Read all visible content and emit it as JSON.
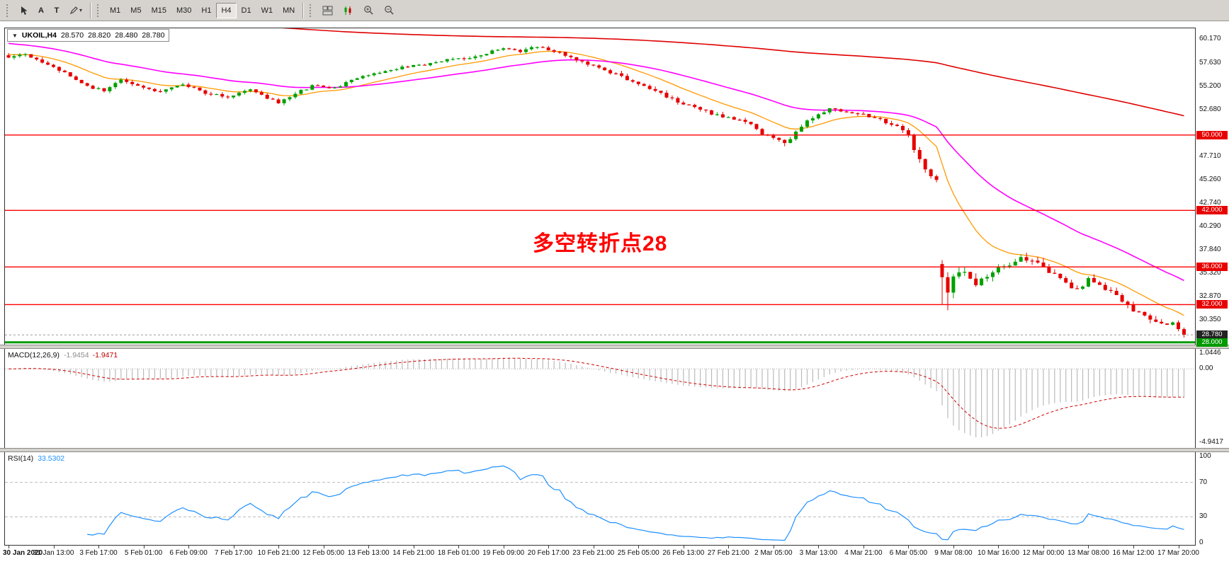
{
  "toolbar": {
    "buttons": {
      "arrow_label": "A",
      "text_label": "T"
    },
    "timeframes": {
      "items": [
        "M1",
        "M5",
        "M15",
        "M30",
        "H1",
        "H4",
        "D1",
        "W1",
        "MN"
      ],
      "active": "H4"
    },
    "right_icons": [
      "tile-windows",
      "candlestick-chart",
      "zoom-in",
      "zoom-out"
    ]
  },
  "chart": {
    "info": {
      "symbol_tf": "UKOIL,H4",
      "open": "28.570",
      "high": "28.820",
      "low": "28.480",
      "close": "28.780"
    },
    "annotation": {
      "text": "多空转折点28",
      "color": "#FF0000"
    },
    "axis": {
      "ticks": [
        [
          "60.170",
          60.17
        ],
        [
          "57.630",
          57.63
        ],
        [
          "55.200",
          55.2
        ],
        [
          "52.680",
          52.68
        ],
        [
          "47.710",
          47.71
        ],
        [
          "45.260",
          45.26
        ],
        [
          "42.740",
          42.74
        ],
        [
          "40.290",
          40.29
        ],
        [
          "37.840",
          37.84
        ],
        [
          "35.320",
          35.32
        ],
        [
          "32.870",
          32.87
        ],
        [
          "30.350",
          30.35
        ]
      ],
      "badges": [
        [
          "50.000",
          50,
          "#E80000"
        ],
        [
          "42.000",
          42,
          "#E80000"
        ],
        [
          "36.000",
          36,
          "#E80000"
        ],
        [
          "32.000",
          32,
          "#E80000"
        ],
        [
          "28.780",
          28.78,
          "#222222"
        ],
        [
          "28.000",
          28,
          "#009900"
        ]
      ]
    },
    "macd": {
      "label": "MACD(12,26,9)",
      "value_main": "-1.9454",
      "value_signal": "-1.9471",
      "axis": [
        [
          "1.0446",
          1.0446
        ],
        [
          "0.00",
          0
        ],
        [
          "-4.9417",
          -4.9417
        ]
      ]
    },
    "rsi": {
      "label": "RSI(14)",
      "value": "33.5302",
      "axis": [
        [
          "100",
          100
        ],
        [
          "70",
          70
        ],
        [
          "30",
          30
        ],
        [
          "0",
          0
        ]
      ],
      "levels": [
        70,
        30
      ]
    }
  },
  "chart_data": {
    "type": "candlestick",
    "symbol": "UKOIL",
    "timeframe": "H4",
    "bars": 210,
    "last_close": 28.78,
    "current_price": 28.78,
    "colors": {
      "up": "#00A000",
      "down": "#E60000",
      "macd_hist": "#BBBBBB",
      "macd_signal": "#D00000",
      "rsi": "#1E90FF"
    },
    "price_anchors": [
      [
        0,
        58.1,
        0.5
      ],
      [
        3,
        58.6,
        0.5
      ],
      [
        6,
        57.8,
        0.5
      ],
      [
        10,
        56.6,
        0.5
      ],
      [
        14,
        55.2,
        0.5
      ],
      [
        17,
        54.7,
        0.5
      ],
      [
        20,
        55.8,
        0.5
      ],
      [
        24,
        55.1,
        0.45
      ],
      [
        27,
        54.6,
        0.45
      ],
      [
        31,
        55.4,
        0.45
      ],
      [
        35,
        54.5,
        0.45
      ],
      [
        39,
        54.1,
        0.45
      ],
      [
        43,
        54.9,
        0.45
      ],
      [
        46,
        53.9,
        0.45
      ],
      [
        48,
        53.4,
        0.45
      ],
      [
        51,
        54.4,
        0.45
      ],
      [
        54,
        55.2,
        0.45
      ],
      [
        58,
        55.0,
        0.4
      ],
      [
        62,
        56.1,
        0.4
      ],
      [
        66,
        56.7,
        0.4
      ],
      [
        70,
        57.2,
        0.4
      ],
      [
        74,
        57.5,
        0.4
      ],
      [
        78,
        58.0,
        0.4
      ],
      [
        82,
        58.2,
        0.4
      ],
      [
        85,
        58.7,
        0.45
      ],
      [
        88,
        59.2,
        0.45
      ],
      [
        91,
        58.9,
        0.45
      ],
      [
        93,
        59.4,
        0.45
      ],
      [
        96,
        59.1,
        0.45
      ],
      [
        99,
        58.5,
        0.5
      ],
      [
        102,
        57.8,
        0.5
      ],
      [
        105,
        57.1,
        0.5
      ],
      [
        108,
        56.4,
        0.55
      ],
      [
        111,
        55.7,
        0.55
      ],
      [
        114,
        54.9,
        0.55
      ],
      [
        117,
        54.1,
        0.55
      ],
      [
        120,
        53.3,
        0.55
      ],
      [
        123,
        52.7,
        0.55
      ],
      [
        126,
        52.1,
        0.55
      ],
      [
        129,
        51.7,
        0.5
      ],
      [
        132,
        51.1,
        0.5
      ],
      [
        134,
        50.2,
        0.55
      ],
      [
        136,
        49.6,
        0.55
      ],
      [
        138,
        49.1,
        0.55
      ],
      [
        140,
        50.3,
        0.6
      ],
      [
        142,
        51.4,
        0.6
      ],
      [
        144,
        52.2,
        0.6
      ],
      [
        146,
        52.9,
        0.55
      ],
      [
        149,
        52.4,
        0.5
      ],
      [
        152,
        52.1,
        0.5
      ],
      [
        155,
        51.6,
        0.5
      ],
      [
        158,
        50.9,
        0.55
      ],
      [
        160,
        49.9,
        0.7
      ],
      [
        161,
        48.6,
        0.8
      ],
      [
        162,
        47.4,
        0.8
      ],
      [
        163,
        46.3,
        0.8
      ],
      [
        164,
        45.6,
        0.7
      ],
      [
        165,
        45.1,
        0.6
      ],
      [
        166,
        34.8,
        1.3
      ],
      [
        167,
        33.6,
        1.4
      ],
      [
        168,
        34.8,
        1.3
      ],
      [
        170,
        35.6,
        1.2
      ],
      [
        172,
        34.2,
        1.2
      ],
      [
        174,
        35.2,
        1.2
      ],
      [
        176,
        36.1,
        1.1
      ],
      [
        178,
        36.4,
        1.0
      ],
      [
        180,
        37.2,
        1.0
      ],
      [
        182,
        36.6,
        1.0
      ],
      [
        184,
        35.9,
        1.0
      ],
      [
        186,
        35.1,
        1.0
      ],
      [
        188,
        34.2,
        1.0
      ],
      [
        190,
        33.6,
        0.9
      ],
      [
        192,
        34.6,
        0.9
      ],
      [
        194,
        34.1,
        0.9
      ],
      [
        196,
        33.4,
        0.9
      ],
      [
        198,
        32.3,
        0.9
      ],
      [
        200,
        31.4,
        0.8
      ],
      [
        202,
        30.9,
        0.8
      ],
      [
        204,
        30.3,
        0.8
      ],
      [
        206,
        29.7,
        0.7
      ],
      [
        207,
        30.1,
        0.7
      ],
      [
        208,
        29.3,
        0.7
      ],
      [
        209,
        28.78,
        0.6
      ]
    ],
    "gap_opens": {
      "166": 36.3
    },
    "wick_lows": {
      "138": 48.8,
      "166": 32.0,
      "167": 31.4,
      "209": 28.5
    },
    "overlays": [
      {
        "name": "ma-fast-orange",
        "period": 14,
        "seed": 58.6,
        "color": "#FF9900",
        "width": 1.3
      },
      {
        "name": "ma-mid-magenta",
        "period": 40,
        "seed": 59.8,
        "color": "#FF00FF",
        "width": 1.6
      },
      {
        "name": "ma-slow-red",
        "period": 330,
        "seed": 63.5,
        "color": "#E00000",
        "width": 1.6
      }
    ],
    "hlines": [
      [
        50,
        "#FF0000",
        1.4
      ],
      [
        42,
        "#FF0000",
        1.4
      ],
      [
        36,
        "#FF0000",
        1.4
      ],
      [
        32,
        "#FF0000",
        1.4
      ],
      [
        28,
        "#009900",
        3
      ]
    ],
    "macd": {
      "fast": 12,
      "slow": 26,
      "signal": 9,
      "scale": [
        1.35,
        -5.35
      ]
    },
    "rsi": {
      "period": 14,
      "levels": [
        70,
        30
      ]
    },
    "time_labels": [
      "30 Jan 2020",
      "31 Jan 13:00",
      "3 Feb 17:00",
      "5 Feb 01:00",
      "6 Feb 09:00",
      "7 Feb 17:00",
      "10 Feb 21:00",
      "12 Feb 05:00",
      "13 Feb 13:00",
      "14 Feb 21:00",
      "18 Feb 01:00",
      "19 Feb 09:00",
      "20 Feb 17:00",
      "23 Feb 21:00",
      "25 Feb 05:00",
      "26 Feb 13:00",
      "27 Feb 21:00",
      "2 Mar 05:00",
      "3 Mar 13:00",
      "4 Mar 21:00",
      "6 Mar 05:00",
      "9 Mar 08:00",
      "10 Mar 16:00",
      "12 Mar 00:00",
      "13 Mar 08:00",
      "16 Mar 12:00",
      "17 Mar 20:00"
    ]
  }
}
